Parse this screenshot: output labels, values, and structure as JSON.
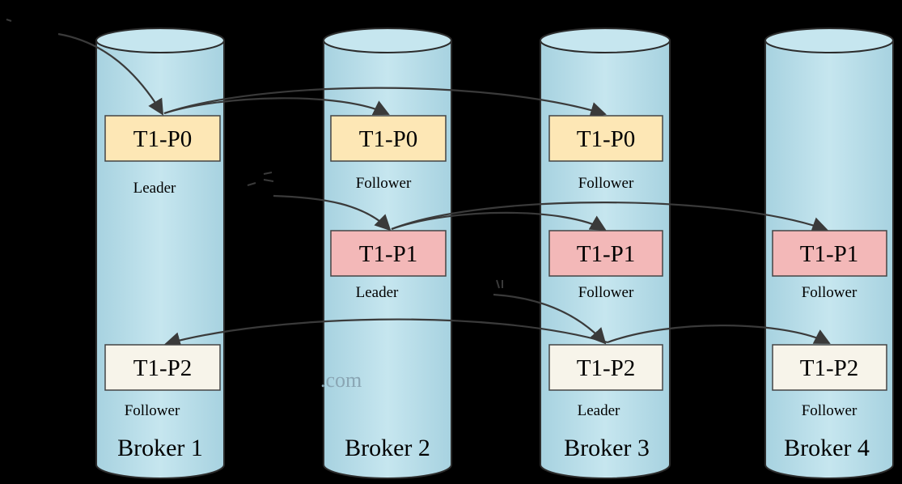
{
  "colors": {
    "background": "#000000",
    "cylinder_fill": "#bfe2ec",
    "cylinder_side": "#a9d3e0",
    "cylinder_stroke": "#2c2c2c",
    "p0_fill": "#fde7b5",
    "p1_fill": "#f3b8b8",
    "p2_fill": "#f7f4ea",
    "arrow": "#3a3a3a"
  },
  "watermark": {
    "text_left": "www",
    "text_right": ".com"
  },
  "brokers": [
    {
      "id": "b1",
      "label": "Broker 1",
      "partitions": [
        {
          "name": "T1-P0",
          "role": "Leader",
          "row": 0
        },
        {
          "name": "T1-P2",
          "role": "Follower",
          "row": 2
        }
      ]
    },
    {
      "id": "b2",
      "label": "Broker 2",
      "partitions": [
        {
          "name": "T1-P0",
          "role": "Follower",
          "row": 0
        },
        {
          "name": "T1-P1",
          "role": "Leader",
          "row": 1
        }
      ]
    },
    {
      "id": "b3",
      "label": "Broker 3",
      "partitions": [
        {
          "name": "T1-P0",
          "role": "Follower",
          "row": 0
        },
        {
          "name": "T1-P1",
          "role": "Follower",
          "row": 1
        },
        {
          "name": "T1-P2",
          "role": "Leader",
          "row": 2
        }
      ]
    },
    {
      "id": "b4",
      "label": "Broker 4",
      "partitions": [
        {
          "name": "T1-P1",
          "role": "Follower",
          "row": 1
        },
        {
          "name": "T1-P2",
          "role": "Follower",
          "row": 2
        }
      ]
    }
  ],
  "replication": [
    {
      "from": "b1",
      "to": [
        "b2",
        "b3"
      ],
      "partition": "T1-P0"
    },
    {
      "from": "b2",
      "to": [
        "b3",
        "b4"
      ],
      "partition": "T1-P1"
    },
    {
      "from": "b3",
      "to": [
        "b1",
        "b4"
      ],
      "partition": "T1-P2"
    }
  ]
}
